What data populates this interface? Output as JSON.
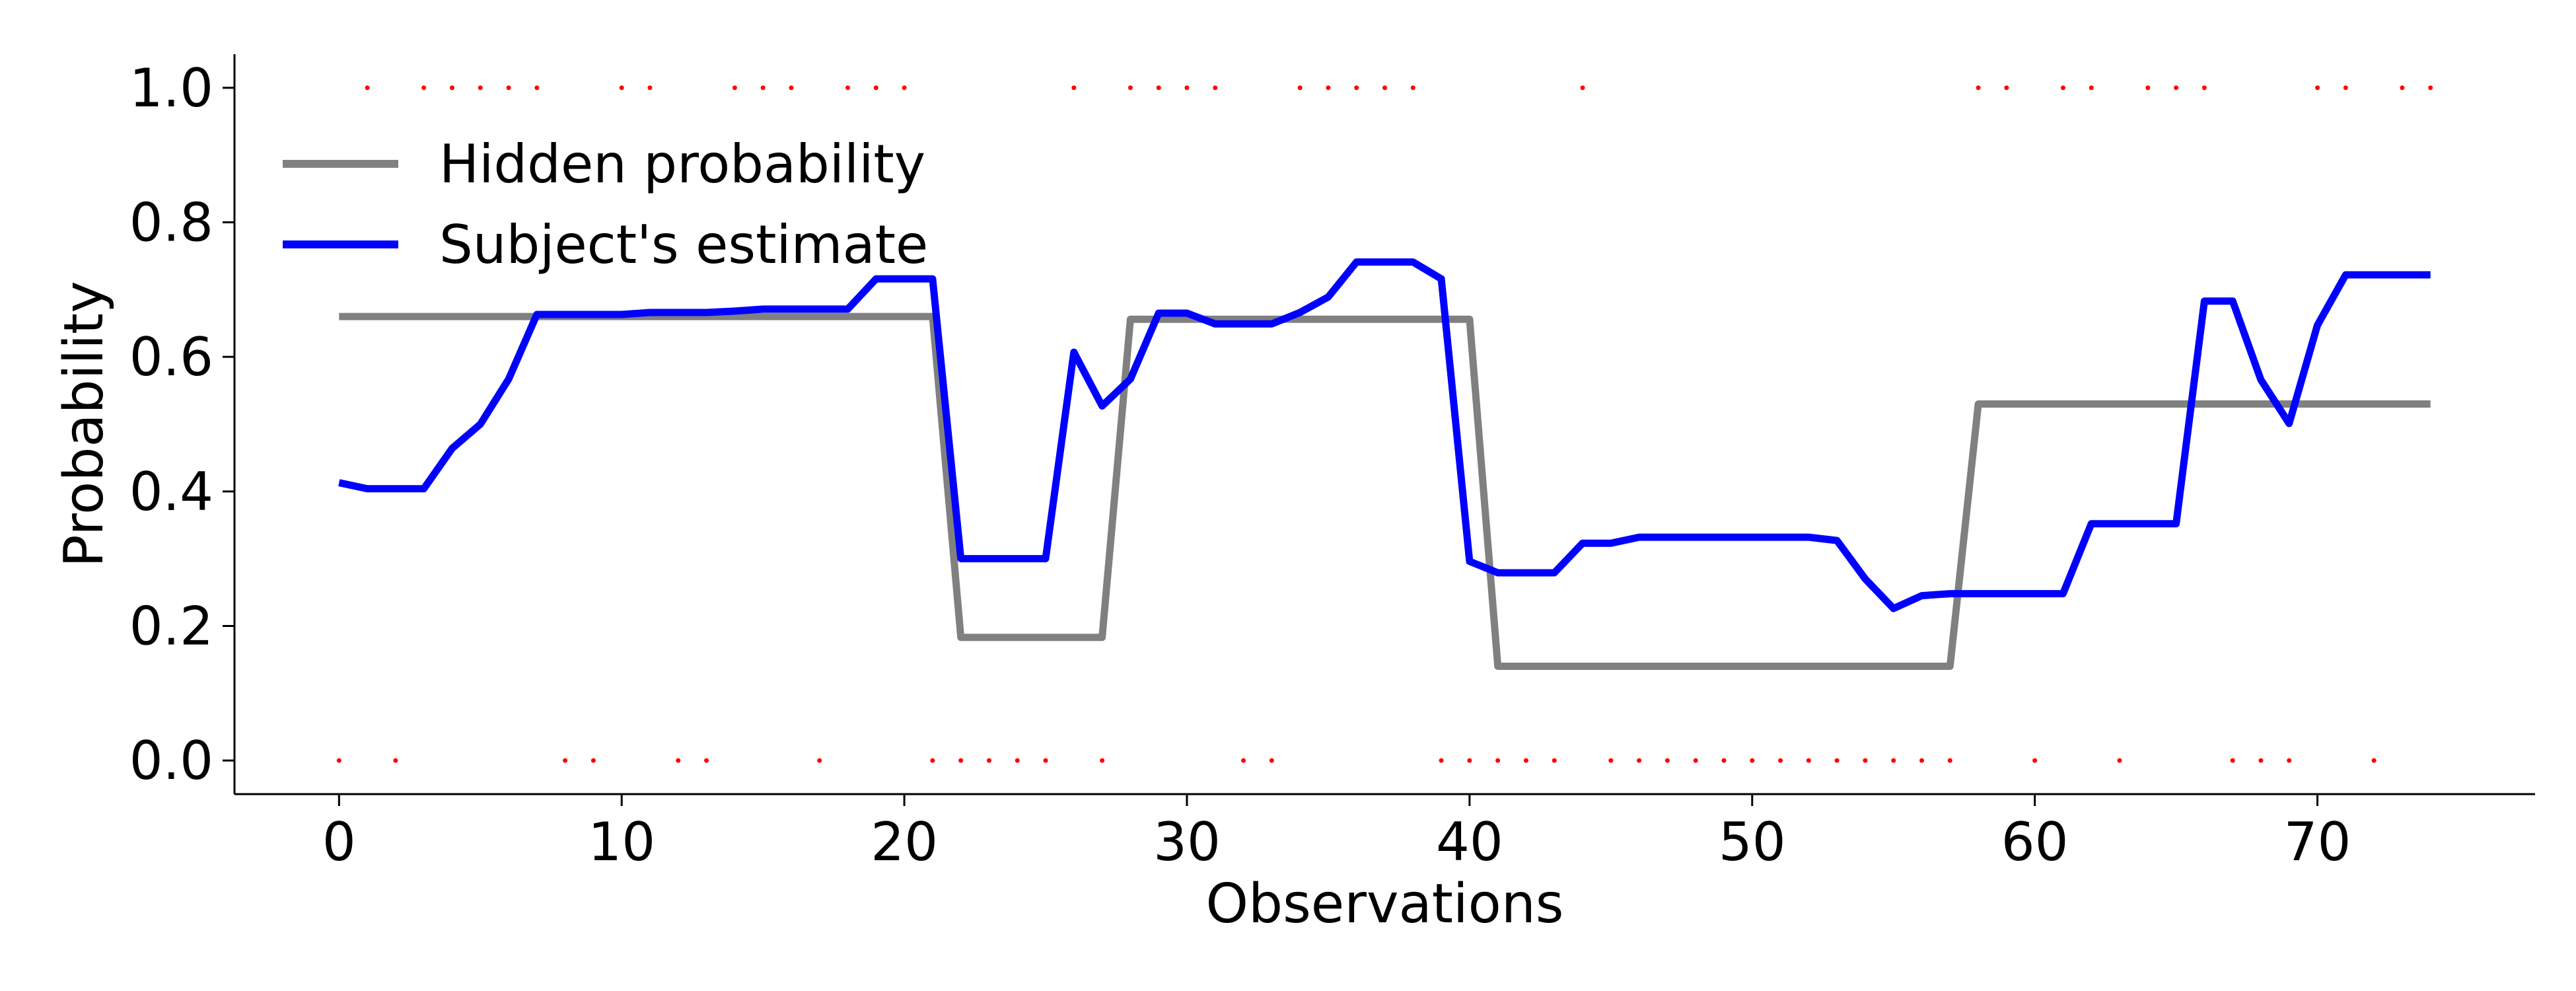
{
  "chart_data": {
    "type": "line",
    "xlabel": "Observations",
    "ylabel": "Probability",
    "xlim": [
      -3.7,
      77.7
    ],
    "ylim": [
      -0.05,
      1.05
    ],
    "xticks": [
      0,
      10,
      20,
      30,
      40,
      50,
      60,
      70
    ],
    "yticks": [
      0.0,
      0.2,
      0.4,
      0.6,
      0.8,
      1.0
    ],
    "xtick_labels": [
      "0",
      "10",
      "20",
      "30",
      "40",
      "50",
      "60",
      "70"
    ],
    "ytick_labels": [
      "0.0",
      "0.2",
      "0.4",
      "0.6",
      "0.8",
      "1.0"
    ],
    "grid": false,
    "legend_position": "upper-left",
    "series": [
      {
        "name": "Hidden probability",
        "color": "#808080",
        "x": [
          0,
          1,
          2,
          3,
          4,
          5,
          6,
          7,
          8,
          9,
          10,
          11,
          12,
          13,
          14,
          15,
          16,
          17,
          18,
          19,
          20,
          21,
          22,
          23,
          24,
          25,
          26,
          27,
          28,
          29,
          30,
          31,
          32,
          33,
          34,
          35,
          36,
          37,
          38,
          39,
          40,
          41,
          42,
          43,
          44,
          45,
          46,
          47,
          48,
          49,
          50,
          51,
          52,
          53,
          54,
          55,
          56,
          57,
          58,
          59,
          60,
          61,
          62,
          63,
          64,
          65,
          66,
          67,
          68,
          69,
          70,
          71,
          72,
          73,
          74
        ],
        "values": [
          0.66,
          0.66,
          0.66,
          0.66,
          0.66,
          0.66,
          0.66,
          0.66,
          0.66,
          0.66,
          0.66,
          0.66,
          0.66,
          0.66,
          0.66,
          0.66,
          0.66,
          0.66,
          0.66,
          0.66,
          0.66,
          0.66,
          0.183,
          0.183,
          0.183,
          0.183,
          0.183,
          0.183,
          0.656,
          0.656,
          0.656,
          0.656,
          0.656,
          0.656,
          0.656,
          0.656,
          0.656,
          0.656,
          0.656,
          0.656,
          0.656,
          0.14,
          0.14,
          0.14,
          0.14,
          0.14,
          0.14,
          0.14,
          0.14,
          0.14,
          0.14,
          0.14,
          0.14,
          0.14,
          0.14,
          0.14,
          0.14,
          0.14,
          0.53,
          0.53,
          0.53,
          0.53,
          0.53,
          0.53,
          0.53,
          0.53,
          0.53,
          0.53,
          0.53,
          0.53,
          0.53,
          0.53,
          0.53,
          0.53,
          0.53
        ]
      },
      {
        "name": "Subject's estimate",
        "color": "#0000ff",
        "x": [
          0,
          1,
          2,
          3,
          4,
          5,
          6,
          7,
          8,
          9,
          10,
          11,
          12,
          13,
          14,
          15,
          16,
          17,
          18,
          19,
          20,
          21,
          22,
          23,
          24,
          25,
          26,
          27,
          28,
          29,
          30,
          31,
          32,
          33,
          34,
          35,
          36,
          37,
          38,
          39,
          40,
          41,
          42,
          43,
          44,
          45,
          46,
          47,
          48,
          49,
          50,
          51,
          52,
          53,
          54,
          55,
          56,
          57,
          58,
          59,
          60,
          61,
          62,
          63,
          64,
          65,
          66,
          67,
          68,
          69,
          70,
          71,
          72,
          73,
          74
        ],
        "values": [
          0.413,
          0.404,
          0.404,
          0.404,
          0.464,
          0.5,
          0.567,
          0.663,
          0.663,
          0.663,
          0.663,
          0.666,
          0.666,
          0.666,
          0.668,
          0.671,
          0.671,
          0.671,
          0.671,
          0.716,
          0.716,
          0.716,
          0.3,
          0.3,
          0.3,
          0.3,
          0.607,
          0.527,
          0.567,
          0.665,
          0.665,
          0.649,
          0.649,
          0.649,
          0.666,
          0.689,
          0.741,
          0.741,
          0.741,
          0.716,
          0.296,
          0.279,
          0.279,
          0.279,
          0.323,
          0.323,
          0.332,
          0.332,
          0.332,
          0.332,
          0.332,
          0.332,
          0.332,
          0.327,
          0.27,
          0.226,
          0.245,
          0.248,
          0.248,
          0.248,
          0.248,
          0.248,
          0.352,
          0.352,
          0.352,
          0.352,
          0.683,
          0.683,
          0.566,
          0.501,
          0.647,
          0.722,
          0.722,
          0.722,
          0.722
        ]
      },
      {
        "name": "Observations",
        "type": "scatter",
        "color": "#ff0000",
        "x": [
          0,
          1,
          2,
          3,
          4,
          5,
          6,
          7,
          8,
          9,
          10,
          11,
          12,
          13,
          14,
          15,
          16,
          17,
          18,
          19,
          20,
          21,
          22,
          23,
          24,
          25,
          26,
          27,
          28,
          29,
          30,
          31,
          32,
          33,
          34,
          35,
          36,
          37,
          38,
          39,
          40,
          41,
          42,
          43,
          44,
          45,
          46,
          47,
          48,
          49,
          50,
          51,
          52,
          53,
          54,
          55,
          56,
          57,
          58,
          59,
          60,
          61,
          62,
          63,
          64,
          65,
          66,
          67,
          68,
          69,
          70,
          71,
          72,
          73,
          74
        ],
        "values": [
          0,
          1,
          0,
          1,
          1,
          1,
          1,
          1,
          0,
          0,
          1,
          1,
          0,
          0,
          1,
          1,
          1,
          0,
          1,
          1,
          1,
          0,
          0,
          0,
          0,
          0,
          1,
          0,
          1,
          1,
          1,
          1,
          0,
          0,
          1,
          1,
          1,
          1,
          1,
          0,
          0,
          0,
          0,
          0,
          1,
          0,
          0,
          0,
          0,
          0,
          0,
          0,
          0,
          0,
          0,
          0,
          0,
          0,
          1,
          1,
          0,
          1,
          1,
          0,
          1,
          1,
          1,
          0,
          0,
          0,
          1,
          1,
          0,
          1,
          1
        ]
      }
    ]
  }
}
